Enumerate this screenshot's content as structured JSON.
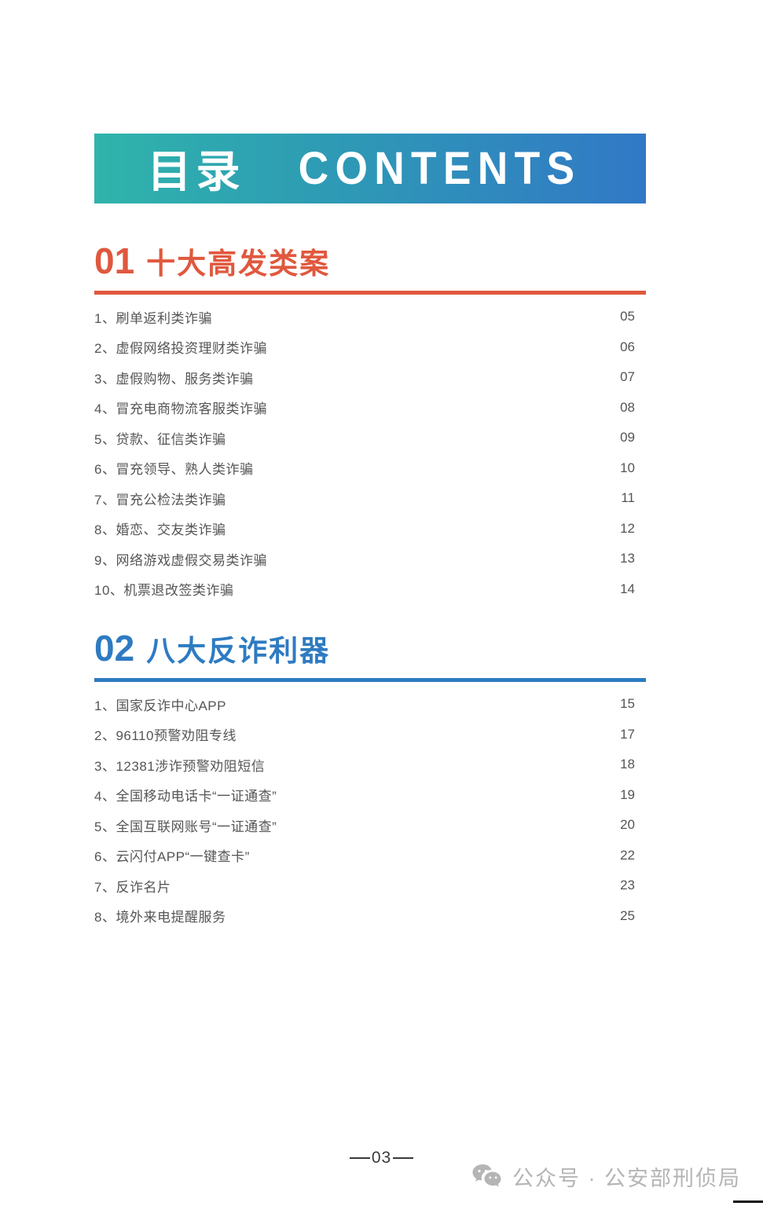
{
  "banner": {
    "title_zh": "目录",
    "title_en": "CONTENTS"
  },
  "colors": {
    "banner_gradient_start": "#2fb4ab",
    "banner_gradient_end": "#3178c6",
    "section1_accent": "#e0583e",
    "section2_accent": "#2e7bc1",
    "item_text": "#555555",
    "watermark_gray": "#b5b5b5"
  },
  "sections": [
    {
      "number": "01",
      "title": "十大高发类案",
      "accent": "#e0583e",
      "items": [
        {
          "label": "1、刷单返利类诈骗",
          "page": "05"
        },
        {
          "label": "2、虚假网络投资理财类诈骗",
          "page": "06"
        },
        {
          "label": "3、虚假购物、服务类诈骗",
          "page": "07"
        },
        {
          "label": "4、冒充电商物流客服类诈骗",
          "page": "08"
        },
        {
          "label": "5、贷款、征信类诈骗",
          "page": "09"
        },
        {
          "label": "6、冒充领导、熟人类诈骗",
          "page": "10"
        },
        {
          "label": "7、冒充公检法类诈骗",
          "page": "11"
        },
        {
          "label": "8、婚恋、交友类诈骗",
          "page": "12"
        },
        {
          "label": "9、网络游戏虚假交易类诈骗",
          "page": "13"
        },
        {
          "label": "10、机票退改签类诈骗",
          "page": "14"
        }
      ]
    },
    {
      "number": "02",
      "title": "八大反诈利器",
      "accent": "#2e7bc1",
      "items": [
        {
          "label": "1、国家反诈中心APP",
          "page": "15"
        },
        {
          "label": "2、96110预警劝阻专线",
          "page": "17"
        },
        {
          "label": "3、12381涉诈预警劝阻短信",
          "page": "18"
        },
        {
          "label": "4、全国移动电话卡“一证通查”",
          "page": "19"
        },
        {
          "label": "5、全国互联网账号“一证通查”",
          "page": "20"
        },
        {
          "label": "6、云闪付APP“一键查卡”",
          "page": "22"
        },
        {
          "label": "7、反诈名片",
          "page": "23"
        },
        {
          "label": "8、境外来电提醒服务",
          "page": "25"
        }
      ]
    }
  ],
  "footer": {
    "page_number": "03"
  },
  "watermark": {
    "icon": "wechat-icon",
    "text": "公众号 · 公安部刑侦局"
  }
}
